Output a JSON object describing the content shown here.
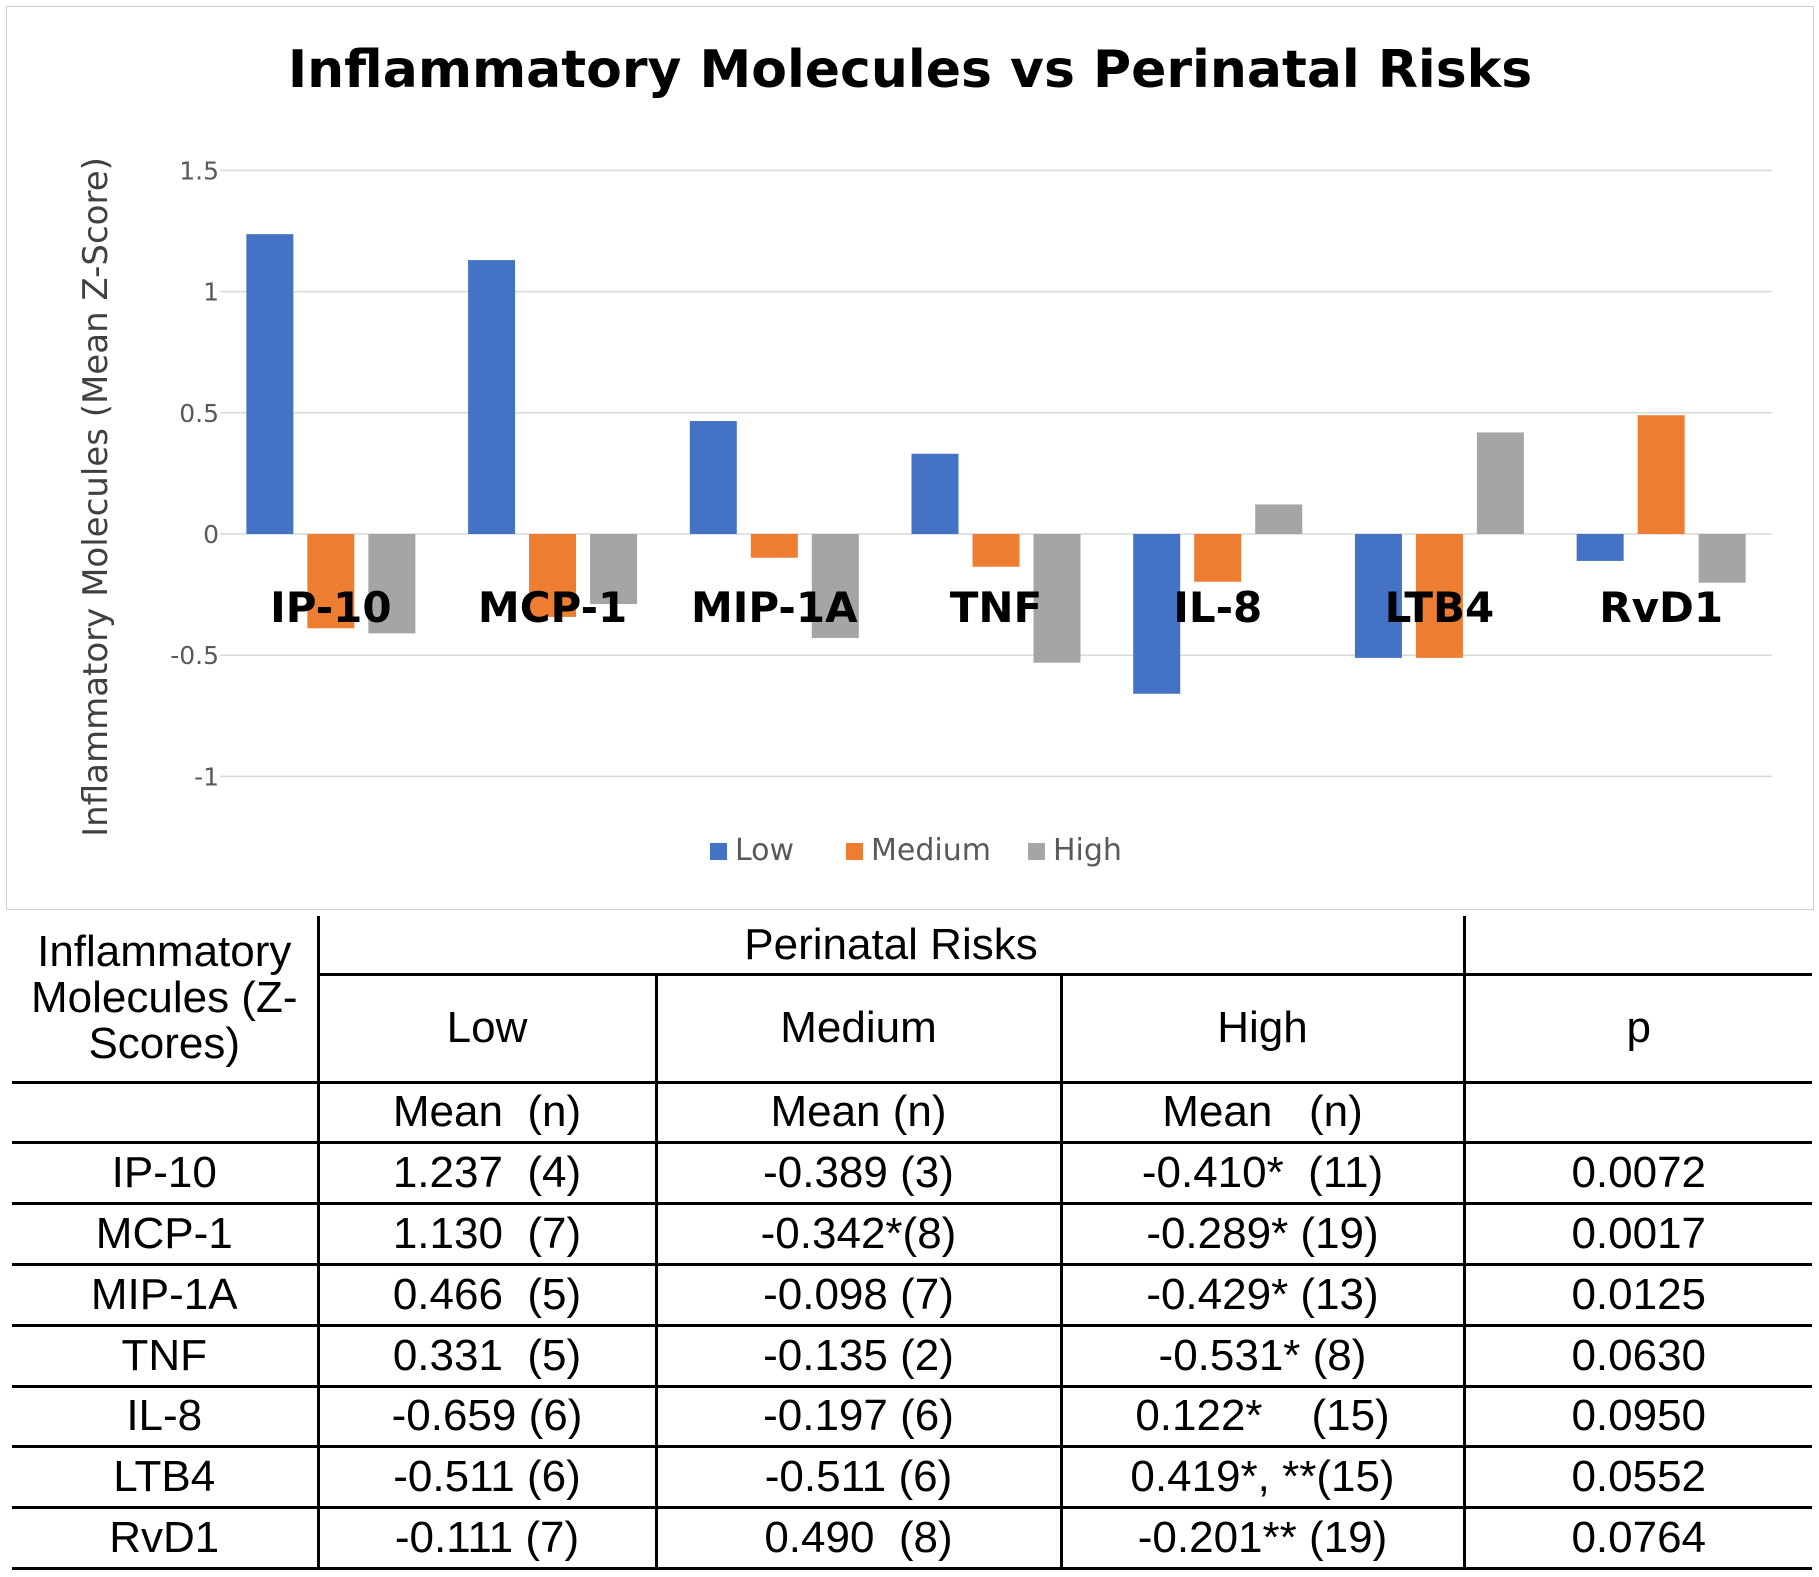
{
  "chart_data": {
    "type": "bar",
    "title": "Inflammatory Molecules vs Perinatal Risks",
    "xlabel": "",
    "ylabel": "Inflammatory Molecules (Mean Z-Score)",
    "ylim": [
      -1,
      1.5
    ],
    "yticks": [
      {
        "value": 1.5,
        "label": "1.5"
      },
      {
        "value": 1,
        "label": "1"
      },
      {
        "value": 0.5,
        "label": "0.5"
      },
      {
        "value": 0,
        "label": "0"
      },
      {
        "value": -0.5,
        "label": "-0.5"
      },
      {
        "value": -1,
        "label": "-1"
      }
    ],
    "grid": true,
    "legend_position": "bottom",
    "categories": [
      "IP-10",
      "MCP-1",
      "MIP-1A",
      "TNF",
      "IL-8",
      "LTB4",
      "RvD1"
    ],
    "series": [
      {
        "name": "Low",
        "color": "#4472c4",
        "values": [
          1.237,
          1.13,
          0.466,
          0.331,
          -0.659,
          -0.511,
          -0.111
        ]
      },
      {
        "name": "Medium",
        "color": "#ed7d31",
        "values": [
          -0.389,
          -0.342,
          -0.098,
          -0.135,
          -0.197,
          -0.511,
          0.49
        ]
      },
      {
        "name": "High",
        "color": "#a5a5a5",
        "values": [
          -0.41,
          -0.289,
          -0.429,
          -0.531,
          0.122,
          0.419,
          -0.201
        ]
      }
    ]
  },
  "table": {
    "corner_label": "Inflammatory Molecules (Z-Scores)",
    "group_header": "Perinatal Risks",
    "columns": [
      "Low",
      "Medium",
      "High"
    ],
    "p_header": "p",
    "subheaders": [
      "Mean  (n)",
      "Mean (n)",
      "Mean   (n)"
    ],
    "rows": [
      {
        "name": "IP-10",
        "low": "1.237  (4)",
        "medium": "-0.389 (3)",
        "high": "-0.410*  (11)",
        "p": "0.0072"
      },
      {
        "name": "MCP-1",
        "low": "1.130  (7)",
        "medium": "-0.342*(8)",
        "high": "-0.289* (19)",
        "p": "0.0017"
      },
      {
        "name": "MIP-1A",
        "low": "0.466  (5)",
        "medium": "-0.098 (7)",
        "high": "-0.429* (13)",
        "p": "0.0125"
      },
      {
        "name": "TNF",
        "low": "0.331  (5)",
        "medium": "-0.135 (2)",
        "high": "-0.531* (8)",
        "p": "0.0630"
      },
      {
        "name": "IL-8",
        "low": "-0.659 (6)",
        "medium": "-0.197 (6)",
        "high": "0.122*    (15)",
        "p": "0.0950"
      },
      {
        "name": "LTB4",
        "low": "-0.511 (6)",
        "medium": "-0.511 (6)",
        "high": "0.419*, **(15)",
        "p": "0.0552"
      },
      {
        "name": "RvD1",
        "low": "-0.111 (7)",
        "medium": "0.490  (8)",
        "high": "-0.201** (19)",
        "p": "0.0764"
      }
    ]
  }
}
